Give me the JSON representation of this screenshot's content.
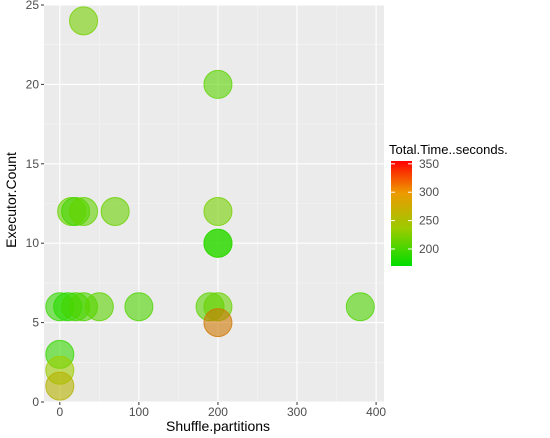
{
  "chart_data": {
    "type": "scatter",
    "xlabel": "Shuffle.partitions",
    "ylabel": "Executor.Count",
    "xlim": [
      -20,
      410
    ],
    "ylim": [
      0,
      25
    ],
    "x_ticks": [
      0,
      100,
      200,
      300,
      400
    ],
    "y_ticks": [
      0,
      5,
      10,
      15,
      20,
      25
    ],
    "grid": true,
    "legend": {
      "title": "Total.Time..seconds.",
      "placement": "right",
      "ticks": [
        200,
        250,
        300,
        350
      ],
      "min": 170,
      "max": 355
    },
    "color_scale": {
      "low": "#00dd00",
      "mid": "#aacc00",
      "high": "#ff0000"
    },
    "points": [
      {
        "x": 30,
        "y": 24,
        "value": 215
      },
      {
        "x": 200,
        "y": 20,
        "value": 205
      },
      {
        "x": 15,
        "y": 12,
        "value": 210
      },
      {
        "x": 20,
        "y": 12,
        "value": 195
      },
      {
        "x": 30,
        "y": 12,
        "value": 208
      },
      {
        "x": 70,
        "y": 12,
        "value": 210
      },
      {
        "x": 200,
        "y": 12,
        "value": 215
      },
      {
        "x": 200,
        "y": 10,
        "value": 185
      },
      {
        "x": 200,
        "y": 10,
        "value": 188
      },
      {
        "x": 0,
        "y": 6,
        "value": 190
      },
      {
        "x": 10,
        "y": 6,
        "value": 185
      },
      {
        "x": 20,
        "y": 6,
        "value": 195
      },
      {
        "x": 30,
        "y": 6,
        "value": 200
      },
      {
        "x": 50,
        "y": 6,
        "value": 205
      },
      {
        "x": 100,
        "y": 6,
        "value": 200
      },
      {
        "x": 190,
        "y": 6,
        "value": 205
      },
      {
        "x": 200,
        "y": 6,
        "value": 210
      },
      {
        "x": 380,
        "y": 6,
        "value": 200
      },
      {
        "x": 200,
        "y": 5,
        "value": 285
      },
      {
        "x": 0,
        "y": 3,
        "value": 190
      },
      {
        "x": 0,
        "y": 2,
        "value": 230
      },
      {
        "x": 0,
        "y": 1,
        "value": 250
      }
    ]
  }
}
